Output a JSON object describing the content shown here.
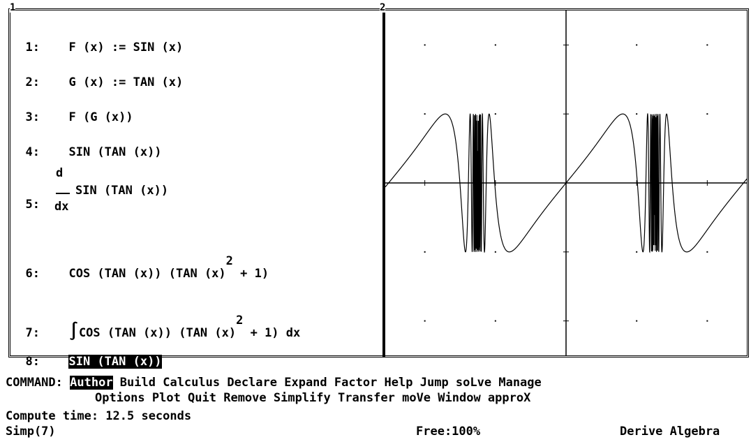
{
  "algebra_window": {
    "number": "1",
    "lines": [
      {
        "num": "1:",
        "text": "F (x) := SIN (x)"
      },
      {
        "num": "2:",
        "text": "G (x) := TAN (x)"
      },
      {
        "num": "3:",
        "text": "F (G (x))"
      },
      {
        "num": "4:",
        "text": "SIN (TAN (x))"
      },
      {
        "num": "5:",
        "deriv_top": "d",
        "deriv_bottom": "dx",
        "text": "SIN (TAN (x))"
      },
      {
        "num": "6:",
        "text_a": "COS (TAN (x)) (TAN (x)",
        "exp": "2",
        "text_b": " + 1)"
      },
      {
        "num": "7:",
        "integral": "∫",
        "text_a": "COS (TAN (x)) (TAN (x)",
        "exp": "2",
        "text_b": " + 1) dx"
      },
      {
        "num": "8:",
        "text": "SIN (TAN (x))"
      }
    ]
  },
  "plot_window": {
    "number": "2",
    "chart_data": {
      "type": "line",
      "function": "SIN (TAN (x))",
      "xlim": [
        -3.2,
        3.2
      ],
      "ylim": [
        -2.5,
        2.5
      ],
      "grid": "dots"
    }
  },
  "command_bar": {
    "prompt": "COMMAND:",
    "selected": "Author",
    "row1": [
      " Build",
      " Calculus",
      " Declare",
      " Expand",
      " Factor",
      " Help",
      " Jump",
      " soLve",
      " Manage"
    ],
    "row2": "Options Plot Quit Remove Simplify Transfer moVe Window approX"
  },
  "status": {
    "message": "Compute time: 12.5 seconds",
    "mode": "Simp(7)",
    "free": "Free:100%",
    "app": "Derive Algebra"
  }
}
